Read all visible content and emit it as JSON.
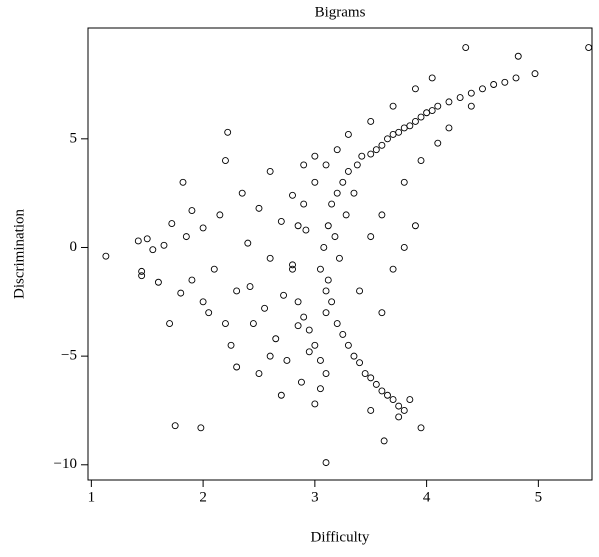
{
  "chart_data": {
    "type": "scatter",
    "title": "Bigrams",
    "x_label": "Difficulty",
    "y_label": "Discrimination",
    "color": "#000000",
    "xlim": [
      0.97,
      5.48
    ],
    "ylim": [
      -10.7,
      10.1
    ],
    "xticks": [
      1,
      2,
      3,
      4,
      5
    ],
    "yticks": [
      {
        "value": -10,
        "label": "−10"
      },
      {
        "value": -5,
        "label": "−5"
      },
      0,
      5
    ],
    "x": [
      1.13,
      1.42,
      1.45,
      1.45,
      1.5,
      1.55,
      1.6,
      1.65,
      1.7,
      1.72,
      1.75,
      1.8,
      1.82,
      1.85,
      1.9,
      1.9,
      1.98,
      2.0,
      2.05,
      2.1,
      2.15,
      2.2,
      2.22,
      2.25,
      2.3,
      2.35,
      2.4,
      2.42,
      2.45,
      2.5,
      2.5,
      2.55,
      2.6,
      2.6,
      2.65,
      2.7,
      2.72,
      2.75,
      2.8,
      2.8,
      2.85,
      2.88,
      2.9,
      2.92,
      2.95,
      3.0,
      3.0,
      3.05,
      3.05,
      3.08,
      3.1,
      3.1,
      3.12,
      3.12,
      3.15,
      3.15,
      3.18,
      3.2,
      3.2,
      3.22,
      3.25,
      3.25,
      3.28,
      3.3,
      3.3,
      3.35,
      3.35,
      3.38,
      3.4,
      3.42,
      3.45,
      3.5,
      3.5,
      3.55,
      3.55,
      3.6,
      3.6,
      3.65,
      3.65,
      3.7,
      3.7,
      3.75,
      3.75,
      3.8,
      3.8,
      3.85,
      3.9,
      3.95,
      4.0,
      4.05,
      4.1,
      4.2,
      4.3,
      4.4,
      4.5,
      4.6,
      4.7,
      4.8,
      4.97,
      4.82,
      4.35,
      5.45,
      3.1,
      3.62,
      3.95,
      3.75,
      3.85,
      3.5,
      2.8,
      2.85,
      2.9,
      2.95,
      3.0,
      3.05,
      3.1,
      2.85,
      2.9,
      3.0,
      3.1,
      3.2,
      3.3,
      3.5,
      3.7,
      3.9,
      4.05,
      3.6,
      3.7,
      3.8,
      3.9,
      3.5,
      3.4,
      3.6,
      3.8,
      4.2,
      4.4,
      4.1,
      3.95,
      2.7,
      2.6,
      2.3,
      2.2,
      2.0
    ],
    "y": [
      -0.4,
      0.3,
      -1.1,
      -1.3,
      0.4,
      -0.1,
      -1.6,
      0.1,
      -3.5,
      1.1,
      -8.2,
      -2.1,
      3,
      0.5,
      -1.5,
      1.7,
      -8.3,
      0.9,
      -3,
      -1,
      1.5,
      4,
      5.3,
      -4.5,
      -2,
      2.5,
      0.2,
      -1.8,
      -3.5,
      1.8,
      -5.8,
      -2.8,
      3.5,
      -0.5,
      -4.2,
      1.2,
      -2.2,
      -5.2,
      2.4,
      -0.8,
      -3.6,
      -6.2,
      3.8,
      0.8,
      -4.8,
      4.2,
      -7.2,
      -6.5,
      -1,
      0,
      -2,
      -3,
      1,
      -1.5,
      -2.5,
      2,
      0.5,
      -3.5,
      2.5,
      -0.5,
      -4,
      3,
      1.5,
      -4.5,
      3.5,
      -5,
      2.5,
      3.8,
      -5.3,
      4.2,
      -5.8,
      4.3,
      -6,
      4.5,
      -6.3,
      4.7,
      -6.6,
      5,
      -6.8,
      5.2,
      -7,
      5.3,
      -7.3,
      5.5,
      -7.5,
      5.6,
      5.8,
      6,
      6.2,
      6.3,
      6.5,
      6.7,
      6.9,
      7.1,
      7.3,
      7.5,
      7.6,
      7.8,
      8,
      8.8,
      9.2,
      9.2,
      -9.9,
      -8.9,
      -8.3,
      -7.8,
      -7,
      -7.5,
      -1,
      -2.5,
      -3.2,
      -3.8,
      -4.5,
      -5.2,
      -5.8,
      1,
      2,
      3,
      3.8,
      4.5,
      5.2,
      5.8,
      6.5,
      7.3,
      7.8,
      -3,
      -1,
      0,
      1,
      0.5,
      -2,
      1.5,
      3,
      5.5,
      6.5,
      4.8,
      4,
      -6.8,
      -5,
      -5.5,
      -3.5,
      -2.5
    ]
  }
}
